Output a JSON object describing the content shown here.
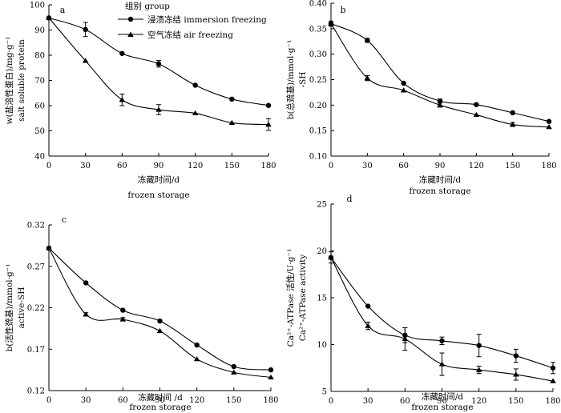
{
  "figure": {
    "legend": {
      "title": "组别 group",
      "entries": [
        "浸渍冻结 immersion freezing",
        "空气冻结 air freezing"
      ]
    }
  },
  "chart_data": [
    {
      "panel": "a",
      "type": "line",
      "x": [
        0,
        30,
        60,
        90,
        120,
        150,
        180
      ],
      "xlabel_cn": "冻藏时间/d",
      "xlabel_en": "frozen storage",
      "ylabel_cn": "w(盐溶性蛋白)/mg·g⁻¹",
      "ylabel_en": "salt soluble protein",
      "ylim": [
        40,
        100
      ],
      "yticks": [
        40,
        50,
        60,
        70,
        80,
        90,
        100
      ],
      "ytick_labels": [
        "40",
        "50",
        "60",
        "70",
        "80",
        "90",
        "100"
      ],
      "series": [
        {
          "name": "浸渍冻结 immersion freezing",
          "marker": "circle",
          "values": [
            94.8,
            90.2,
            80.7,
            76.6,
            68.1,
            62.6,
            60.1
          ],
          "errors": [
            0,
            2.8,
            0,
            1.3,
            0,
            0,
            0
          ]
        },
        {
          "name": "空气冻结 air freezing",
          "marker": "triangle",
          "values": [
            94.8,
            77.8,
            62.3,
            58.4,
            57.0,
            53.2,
            52.5
          ],
          "errors": [
            0,
            0,
            2.3,
            2.0,
            0,
            0,
            2.3
          ]
        }
      ]
    },
    {
      "panel": "b",
      "type": "line",
      "x": [
        0,
        30,
        60,
        90,
        120,
        150,
        180
      ],
      "xlabel_cn": "冻藏时间/d",
      "xlabel_en": "frozen storage",
      "ylabel_cn": "b(总巯基)/mmol·g⁻¹",
      "ylabel_en": "-SH",
      "ylim": [
        0.1,
        0.4
      ],
      "yticks": [
        0.1,
        0.15,
        0.2,
        0.25,
        0.3,
        0.35,
        0.4
      ],
      "ytick_labels": [
        "0.10",
        "0.15",
        "0.20",
        "0.25",
        "0.30",
        "0.35",
        "0.40"
      ],
      "series": [
        {
          "name": "浸渍冻结 immersion freezing",
          "marker": "circle",
          "values": [
            0.36,
            0.327,
            0.243,
            0.208,
            0.201,
            0.185,
            0.168
          ],
          "errors": [
            0.005,
            0.004,
            0,
            0.004,
            0,
            0,
            0
          ]
        },
        {
          "name": "空气冻结 air freezing",
          "marker": "triangle",
          "values": [
            0.36,
            0.253,
            0.229,
            0.2,
            0.181,
            0.162,
            0.157
          ],
          "errors": [
            0,
            0.005,
            0,
            0.004,
            0,
            0.004,
            0
          ]
        }
      ]
    },
    {
      "panel": "c",
      "type": "line",
      "x": [
        0,
        30,
        60,
        90,
        120,
        150,
        180
      ],
      "xlabel_cn": "冻藏时间 /d",
      "xlabel_en": "frozen storage",
      "ylabel_cn": "b(活性巯基)/mmol·g⁻¹",
      "ylabel_en": "active-SH",
      "ylim": [
        0.12,
        0.32
      ],
      "yticks": [
        0.12,
        0.17,
        0.22,
        0.27,
        0.32
      ],
      "ytick_labels": [
        "0.12",
        "0.17",
        "0.22",
        "0.27",
        "0.32"
      ],
      "series": [
        {
          "name": "浸渍冻结 immersion freezing",
          "marker": "circle",
          "values": [
            0.292,
            0.25,
            0.217,
            0.204,
            0.175,
            0.149,
            0.145
          ],
          "errors": [
            0,
            0,
            0,
            0,
            0,
            0,
            0
          ]
        },
        {
          "name": "空气冻结 air freezing",
          "marker": "triangle",
          "values": [
            0.292,
            0.212,
            0.206,
            0.192,
            0.158,
            0.142,
            0.136
          ],
          "errors": [
            0,
            0.002,
            0.002,
            0,
            0,
            0,
            0
          ]
        }
      ]
    },
    {
      "panel": "d",
      "type": "line",
      "x": [
        0,
        30,
        60,
        90,
        120,
        150,
        180
      ],
      "xlabel_cn": "冻藏时间/d",
      "xlabel_en": "frozen storage",
      "ylabel_cn": "Ca²⁺-ATPase 活性/U·g⁻¹",
      "ylabel_en": "Ca²⁺-ATPase activity",
      "ylim": [
        5,
        25
      ],
      "yticks": [
        5,
        10,
        15,
        20,
        25
      ],
      "ytick_labels": [
        "5",
        "10",
        "15",
        "20",
        "25"
      ],
      "series": [
        {
          "name": "浸渍冻结 immersion freezing",
          "marker": "circle",
          "values": [
            19.3,
            14.1,
            11.0,
            10.4,
            9.9,
            8.8,
            7.5
          ],
          "errors": [
            0.6,
            0,
            0.8,
            0.4,
            1.2,
            0.7,
            0.6
          ]
        },
        {
          "name": "空气冻结 air freezing",
          "marker": "triangle",
          "values": [
            19.3,
            12.0,
            10.6,
            7.9,
            7.3,
            6.8,
            6.1
          ],
          "errors": [
            0,
            0.4,
            1.2,
            1.2,
            0.4,
            0.6,
            0
          ]
        }
      ]
    }
  ]
}
